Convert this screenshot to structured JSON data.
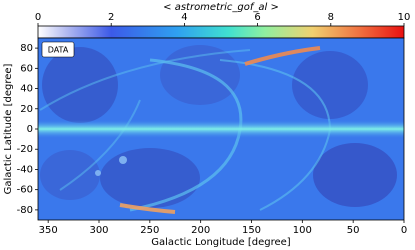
{
  "chart_data": {
    "type": "heatmap",
    "annotation": "DATA",
    "xlabel": "Galactic Longitude [degree]",
    "ylabel": "Galactic Latitude [degree]",
    "xlim": [
      360,
      0
    ],
    "xticks": [
      350,
      300,
      250,
      200,
      150,
      100,
      50,
      0
    ],
    "ylim": [
      -90,
      90
    ],
    "yticks": [
      -80,
      -60,
      -40,
      -20,
      0,
      20,
      40,
      60,
      80
    ],
    "colorbar": {
      "label": "< astrometric_gof_al >",
      "lim": [
        0,
        10
      ],
      "ticks": [
        0,
        2,
        4,
        6,
        8,
        10
      ]
    }
  }
}
